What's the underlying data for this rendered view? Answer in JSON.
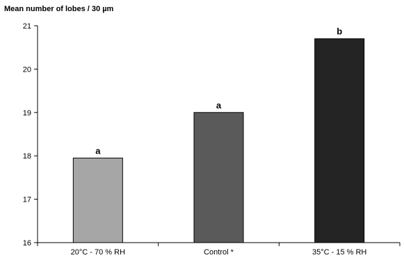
{
  "chart_data": {
    "type": "bar",
    "ylabel": "Mean number of lobes / 30 µm",
    "xlabel": "",
    "ylim": [
      16,
      21
    ],
    "yticks": [
      16,
      17,
      18,
      19,
      20,
      21
    ],
    "grid": false,
    "categories": [
      "20°C - 70 % RH",
      "Control *",
      "35°C - 15 % RH"
    ],
    "values": [
      17.95,
      19.0,
      20.7
    ],
    "annotations": [
      "a",
      "a",
      "b"
    ],
    "colors": [
      "#a6a6a6",
      "#5a5a5a",
      "#242424"
    ]
  }
}
